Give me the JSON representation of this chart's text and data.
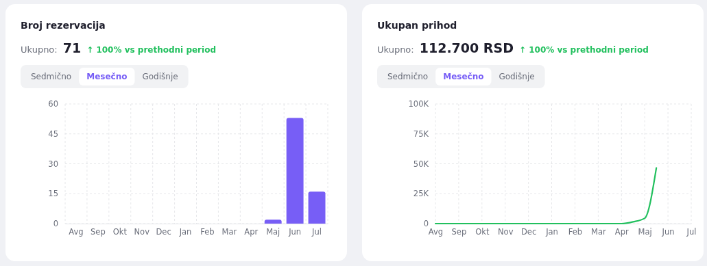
{
  "chart_data": [
    {
      "type": "bar",
      "title": "Broj rezervacija",
      "annotations": [
        "Ukupno:",
        "71",
        "↑ 100% vs prethodni period",
        "Sedmično",
        "Mesečno",
        "Godišnje"
      ],
      "categories": [
        "Avg",
        "Sep",
        "Okt",
        "Nov",
        "Dec",
        "Jan",
        "Feb",
        "Mar",
        "Apr",
        "Maj",
        "Jun",
        "Jul"
      ],
      "values": [
        0,
        0,
        0,
        0,
        0,
        0,
        0,
        0,
        0,
        2,
        53,
        16
      ],
      "color": "#775ef6",
      "ylim": [
        0,
        60
      ],
      "yticks": [
        0,
        15,
        30,
        45,
        60
      ],
      "grid": true
    },
    {
      "type": "line",
      "title": "Ukupan prihod",
      "annotations": [
        "Ukupno:",
        "112.700 RSD",
        "↑ 100% vs prethodni period",
        "Sedmično",
        "Mesečno",
        "Godišnje"
      ],
      "categories": [
        "Avg",
        null,
        "Sep",
        null,
        "Okt",
        null,
        "Nov",
        null,
        "Dec",
        null,
        "Jan",
        null,
        "Feb",
        null,
        "Mar",
        null,
        "Apr",
        null,
        "Maj",
        null,
        "Jun",
        null,
        "Jul"
      ],
      "values": [
        0,
        0,
        0,
        0,
        0,
        0,
        0,
        0,
        0,
        0,
        0,
        0,
        0,
        0,
        0,
        0,
        0,
        1500,
        4500,
        46500,
        null,
        null,
        null
      ],
      "color": "#22c05e",
      "ylim": [
        0,
        100000
      ],
      "yticks": [
        0,
        {
          "value": 25000,
          "label": "25K"
        },
        {
          "value": 50000,
          "label": "50K"
        },
        {
          "value": 75000,
          "label": "75K"
        },
        {
          "value": 100000,
          "label": "100K"
        }
      ],
      "grid": true
    }
  ]
}
